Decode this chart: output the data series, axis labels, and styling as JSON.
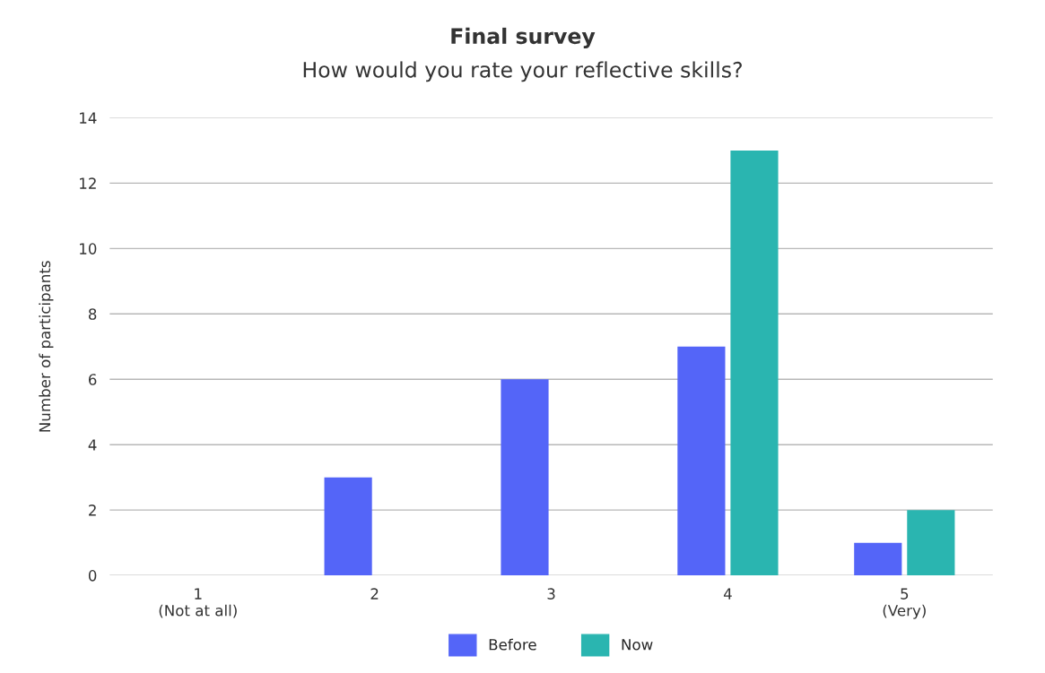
{
  "chart_data": {
    "type": "bar",
    "title": "Final survey",
    "subtitle": "How would you rate your reflective skills?",
    "ylabel": "Number of participants",
    "categories": [
      "1\n(Not at all)",
      "2",
      "3",
      "4",
      "5\n(Very)"
    ],
    "series": [
      {
        "name": "Before",
        "color": "#5465f8",
        "values": [
          0,
          3,
          6,
          7,
          1
        ]
      },
      {
        "name": "Now",
        "color": "#2ab5b0",
        "values": [
          0,
          0,
          0,
          13,
          2
        ]
      }
    ],
    "ylim": [
      0,
      14
    ],
    "yticks": [
      0,
      2,
      4,
      6,
      8,
      10,
      12,
      14
    ],
    "grid": "y",
    "legend": "bottom"
  }
}
